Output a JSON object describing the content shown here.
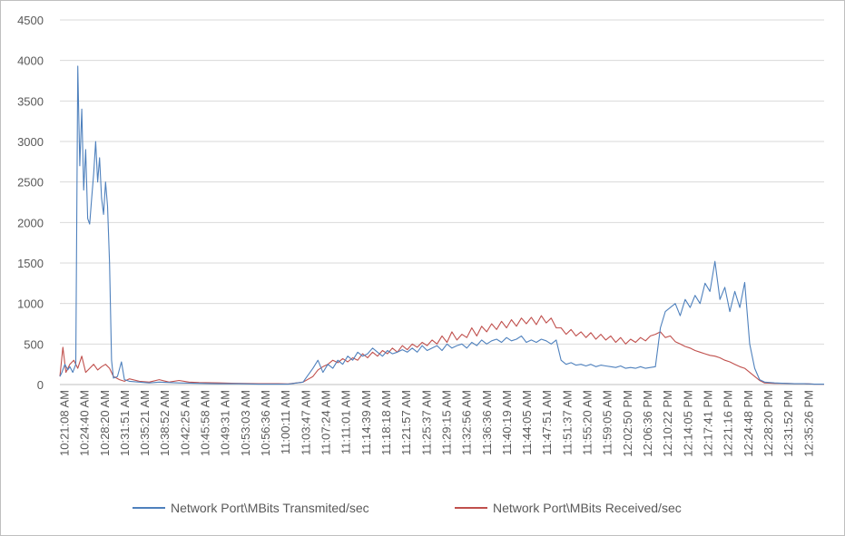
{
  "chart_data": {
    "type": "line",
    "title": "",
    "xlabel": "",
    "ylabel": "",
    "ylim": [
      0,
      4500
    ],
    "yticks": [
      0,
      500,
      1000,
      1500,
      2000,
      2500,
      3000,
      3500,
      4000,
      4500
    ],
    "x_tick_labels": [
      "10:21:08 AM",
      "10:24:40 AM",
      "10:28:20 AM",
      "10:31:51 AM",
      "10:35:21 AM",
      "10:38:52 AM",
      "10:42:25 AM",
      "10:45:58 AM",
      "10:49:31 AM",
      "10:53:03 AM",
      "10:56:36 AM",
      "11:00:11 AM",
      "11:03:47 AM",
      "11:07:24 AM",
      "11:11:01 AM",
      "11:14:39 AM",
      "11:18:18 AM",
      "11:21:57 AM",
      "11:25:37 AM",
      "11:29:15 AM",
      "11:32:56 AM",
      "11:36:36 AM",
      "11:40:19 AM",
      "11:44:05 AM",
      "11:47:51 AM",
      "11:51:37 AM",
      "11:55:20 AM",
      "11:59:05 AM",
      "12:02:50 PM",
      "12:06:36 PM",
      "12:10:22 PM",
      "12:14:05 PM",
      "12:17:41 PM",
      "12:21:16 PM",
      "12:24:48 PM",
      "12:28:20 PM",
      "12:31:52 PM",
      "12:35:26 PM"
    ],
    "x_minutes_range": [
      0,
      77
    ],
    "grid": true,
    "legend_position": "bottom",
    "series": [
      {
        "name": "Network Port\\MBits Transmited/sec",
        "color": "#4f81bd",
        "points": [
          [
            0,
            100
          ],
          [
            0.2,
            150
          ],
          [
            0.5,
            250
          ],
          [
            0.8,
            180
          ],
          [
            1.0,
            220
          ],
          [
            1.3,
            150
          ],
          [
            1.6,
            250
          ],
          [
            1.8,
            3930
          ],
          [
            2.0,
            2700
          ],
          [
            2.2,
            3400
          ],
          [
            2.4,
            2400
          ],
          [
            2.6,
            2900
          ],
          [
            2.8,
            2050
          ],
          [
            3.0,
            1980
          ],
          [
            3.2,
            2300
          ],
          [
            3.4,
            2600
          ],
          [
            3.6,
            3000
          ],
          [
            3.8,
            2500
          ],
          [
            4.0,
            2800
          ],
          [
            4.2,
            2300
          ],
          [
            4.4,
            2100
          ],
          [
            4.6,
            2500
          ],
          [
            4.8,
            2200
          ],
          [
            5.0,
            1500
          ],
          [
            5.2,
            300
          ],
          [
            5.4,
            80
          ],
          [
            5.8,
            100
          ],
          [
            6.2,
            280
          ],
          [
            6.5,
            60
          ],
          [
            7,
            40
          ],
          [
            8,
            30
          ],
          [
            9,
            20
          ],
          [
            10,
            30
          ],
          [
            12,
            20
          ],
          [
            14,
            15
          ],
          [
            16,
            10
          ],
          [
            18,
            10
          ],
          [
            20,
            5
          ],
          [
            23,
            5
          ],
          [
            24.5,
            30
          ],
          [
            25.5,
            200
          ],
          [
            26,
            300
          ],
          [
            26.5,
            150
          ],
          [
            27,
            250
          ],
          [
            27.5,
            200
          ],
          [
            28,
            300
          ],
          [
            28.5,
            250
          ],
          [
            29,
            350
          ],
          [
            29.5,
            300
          ],
          [
            30,
            400
          ],
          [
            30.5,
            350
          ],
          [
            31,
            380
          ],
          [
            31.5,
            450
          ],
          [
            32,
            400
          ],
          [
            32.5,
            350
          ],
          [
            33,
            420
          ],
          [
            33.5,
            380
          ],
          [
            34,
            400
          ],
          [
            34.5,
            430
          ],
          [
            35,
            400
          ],
          [
            35.5,
            450
          ],
          [
            36,
            400
          ],
          [
            36.5,
            480
          ],
          [
            37,
            420
          ],
          [
            37.5,
            450
          ],
          [
            38,
            480
          ],
          [
            38.5,
            420
          ],
          [
            39,
            500
          ],
          [
            39.5,
            450
          ],
          [
            40,
            480
          ],
          [
            40.5,
            500
          ],
          [
            41,
            450
          ],
          [
            41.5,
            520
          ],
          [
            42,
            480
          ],
          [
            42.5,
            550
          ],
          [
            43,
            500
          ],
          [
            43.5,
            540
          ],
          [
            44,
            560
          ],
          [
            44.5,
            520
          ],
          [
            45,
            580
          ],
          [
            45.5,
            540
          ],
          [
            46,
            560
          ],
          [
            46.5,
            600
          ],
          [
            47,
            520
          ],
          [
            47.5,
            550
          ],
          [
            48,
            520
          ],
          [
            48.5,
            560
          ],
          [
            49,
            540
          ],
          [
            49.5,
            500
          ],
          [
            50,
            550
          ],
          [
            50.5,
            300
          ],
          [
            51,
            250
          ],
          [
            51.5,
            270
          ],
          [
            52,
            240
          ],
          [
            52.5,
            250
          ],
          [
            53,
            230
          ],
          [
            53.5,
            250
          ],
          [
            54,
            220
          ],
          [
            54.5,
            240
          ],
          [
            55,
            230
          ],
          [
            55.5,
            220
          ],
          [
            56,
            210
          ],
          [
            56.5,
            230
          ],
          [
            57,
            200
          ],
          [
            57.5,
            210
          ],
          [
            58,
            200
          ],
          [
            58.5,
            220
          ],
          [
            59,
            200
          ],
          [
            59.5,
            210
          ],
          [
            60,
            220
          ],
          [
            60.5,
            700
          ],
          [
            61,
            900
          ],
          [
            61.5,
            950
          ],
          [
            62,
            1000
          ],
          [
            62.5,
            850
          ],
          [
            63,
            1050
          ],
          [
            63.5,
            950
          ],
          [
            64,
            1100
          ],
          [
            64.5,
            1000
          ],
          [
            65,
            1250
          ],
          [
            65.5,
            1150
          ],
          [
            66,
            1520
          ],
          [
            66.5,
            1050
          ],
          [
            67,
            1200
          ],
          [
            67.5,
            900
          ],
          [
            68,
            1150
          ],
          [
            68.5,
            950
          ],
          [
            69,
            1260
          ],
          [
            69.5,
            500
          ],
          [
            70,
            200
          ],
          [
            70.5,
            60
          ],
          [
            71,
            30
          ],
          [
            72,
            20
          ],
          [
            73,
            15
          ],
          [
            74,
            10
          ],
          [
            75,
            10
          ],
          [
            76,
            5
          ],
          [
            77,
            5
          ]
        ]
      },
      {
        "name": "Network Port\\MBits Received/sec",
        "color": "#c0504d",
        "points": [
          [
            0,
            100
          ],
          [
            0.3,
            460
          ],
          [
            0.6,
            150
          ],
          [
            1.0,
            250
          ],
          [
            1.4,
            300
          ],
          [
            1.8,
            200
          ],
          [
            2.2,
            350
          ],
          [
            2.6,
            150
          ],
          [
            3.0,
            200
          ],
          [
            3.4,
            250
          ],
          [
            3.8,
            180
          ],
          [
            4.2,
            220
          ],
          [
            4.6,
            250
          ],
          [
            5.0,
            200
          ],
          [
            5.4,
            100
          ],
          [
            6,
            60
          ],
          [
            6.5,
            40
          ],
          [
            7,
            70
          ],
          [
            8,
            40
          ],
          [
            9,
            30
          ],
          [
            10,
            60
          ],
          [
            11,
            30
          ],
          [
            12,
            50
          ],
          [
            13,
            30
          ],
          [
            14,
            25
          ],
          [
            16,
            20
          ],
          [
            18,
            15
          ],
          [
            20,
            10
          ],
          [
            22,
            10
          ],
          [
            23,
            8
          ],
          [
            24.5,
            30
          ],
          [
            25.5,
            100
          ],
          [
            26,
            180
          ],
          [
            26.5,
            220
          ],
          [
            27,
            250
          ],
          [
            27.5,
            300
          ],
          [
            28,
            270
          ],
          [
            28.5,
            320
          ],
          [
            29,
            280
          ],
          [
            29.5,
            330
          ],
          [
            30,
            300
          ],
          [
            30.5,
            380
          ],
          [
            31,
            330
          ],
          [
            31.5,
            400
          ],
          [
            32,
            350
          ],
          [
            32.5,
            420
          ],
          [
            33,
            380
          ],
          [
            33.5,
            450
          ],
          [
            34,
            400
          ],
          [
            34.5,
            480
          ],
          [
            35,
            430
          ],
          [
            35.5,
            500
          ],
          [
            36,
            460
          ],
          [
            36.5,
            520
          ],
          [
            37,
            480
          ],
          [
            37.5,
            550
          ],
          [
            38,
            500
          ],
          [
            38.5,
            600
          ],
          [
            39,
            520
          ],
          [
            39.5,
            650
          ],
          [
            40,
            550
          ],
          [
            40.5,
            620
          ],
          [
            41,
            580
          ],
          [
            41.5,
            700
          ],
          [
            42,
            600
          ],
          [
            42.5,
            720
          ],
          [
            43,
            650
          ],
          [
            43.5,
            750
          ],
          [
            44,
            680
          ],
          [
            44.5,
            780
          ],
          [
            45,
            700
          ],
          [
            45.5,
            800
          ],
          [
            46,
            720
          ],
          [
            46.5,
            820
          ],
          [
            47,
            750
          ],
          [
            47.5,
            830
          ],
          [
            48,
            740
          ],
          [
            48.5,
            850
          ],
          [
            49,
            760
          ],
          [
            49.5,
            820
          ],
          [
            50,
            700
          ],
          [
            50.5,
            700
          ],
          [
            51,
            620
          ],
          [
            51.5,
            680
          ],
          [
            52,
            600
          ],
          [
            52.5,
            650
          ],
          [
            53,
            580
          ],
          [
            53.5,
            640
          ],
          [
            54,
            560
          ],
          [
            54.5,
            620
          ],
          [
            55,
            550
          ],
          [
            55.5,
            600
          ],
          [
            56,
            520
          ],
          [
            56.5,
            580
          ],
          [
            57,
            500
          ],
          [
            57.5,
            560
          ],
          [
            58,
            520
          ],
          [
            58.5,
            580
          ],
          [
            59,
            540
          ],
          [
            59.5,
            600
          ],
          [
            60,
            620
          ],
          [
            60.5,
            650
          ],
          [
            61,
            580
          ],
          [
            61.5,
            600
          ],
          [
            62,
            530
          ],
          [
            62.5,
            500
          ],
          [
            63,
            470
          ],
          [
            63.5,
            450
          ],
          [
            64,
            420
          ],
          [
            64.5,
            400
          ],
          [
            65,
            380
          ],
          [
            65.5,
            360
          ],
          [
            66,
            350
          ],
          [
            66.5,
            330
          ],
          [
            67,
            300
          ],
          [
            67.5,
            280
          ],
          [
            68,
            250
          ],
          [
            68.5,
            220
          ],
          [
            69,
            200
          ],
          [
            69.5,
            150
          ],
          [
            70,
            100
          ],
          [
            70.5,
            50
          ],
          [
            71,
            20
          ],
          [
            72,
            15
          ],
          [
            73,
            15
          ],
          [
            74,
            10
          ],
          [
            75,
            10
          ],
          [
            76,
            5
          ],
          [
            77,
            5
          ]
        ]
      }
    ]
  }
}
